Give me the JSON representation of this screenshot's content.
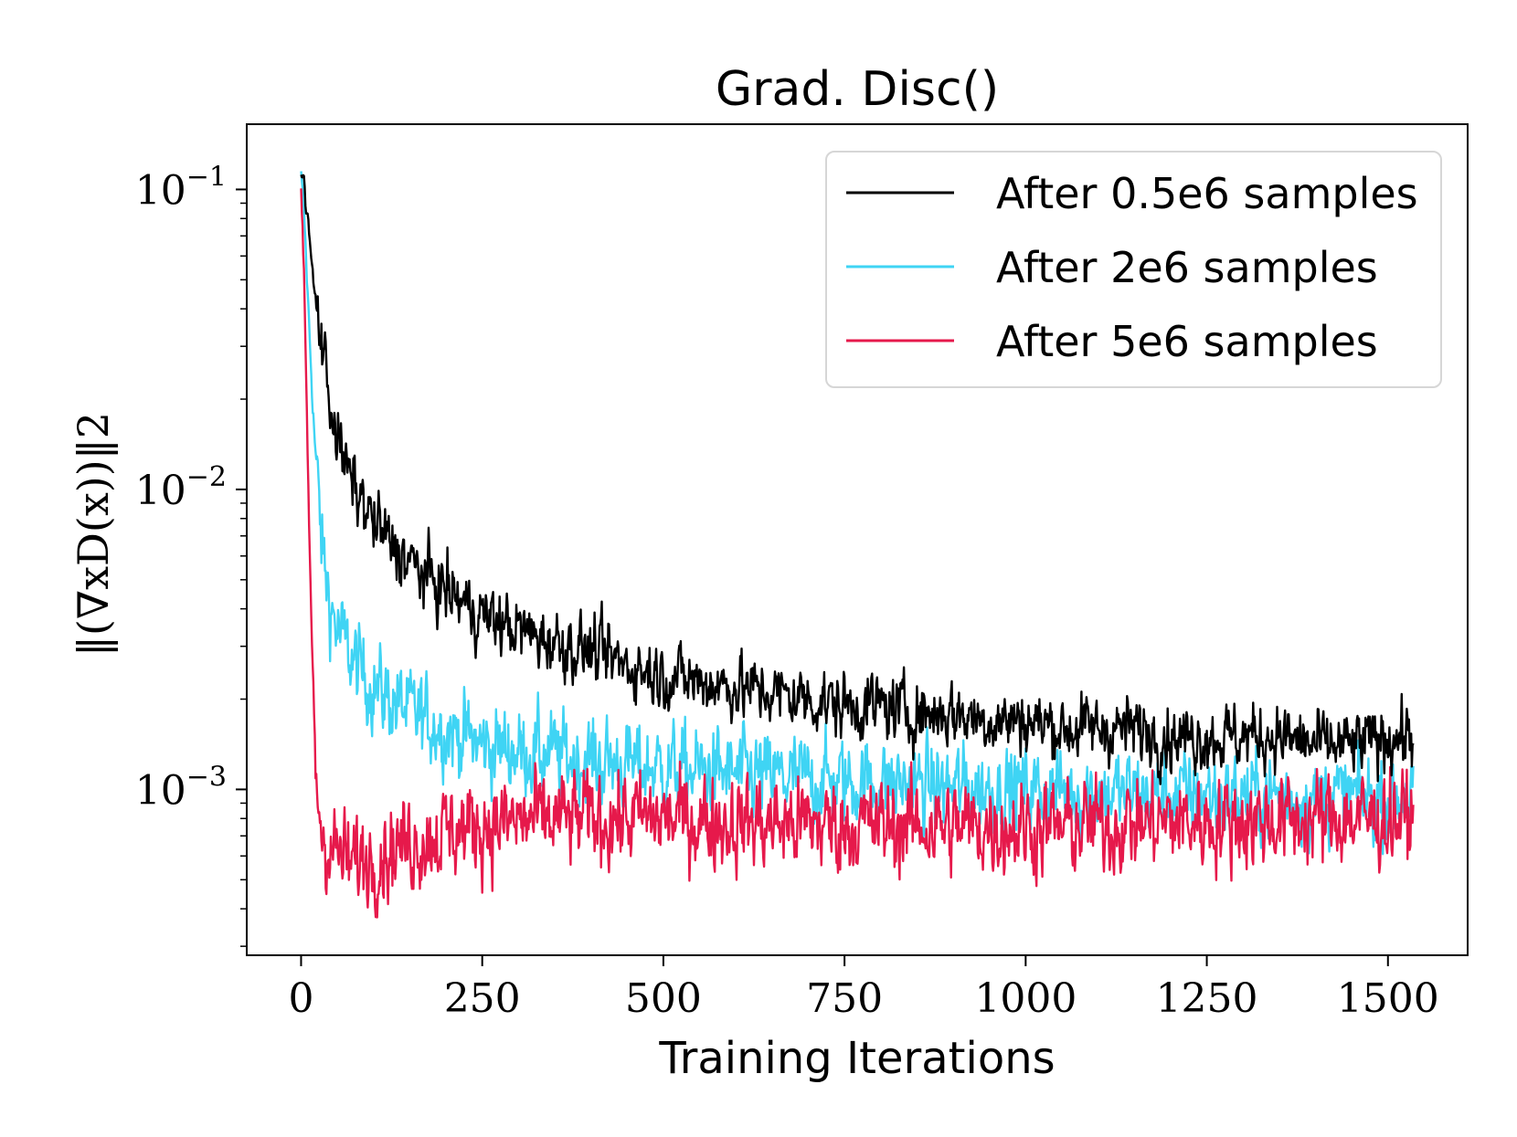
{
  "chart_data": {
    "type": "line",
    "title": "Grad. Disc()",
    "xlabel": "Training Iterations",
    "ylabel": "‖(∇xD(x))‖2",
    "yscale": "log",
    "xlim": [
      -75,
      1610
    ],
    "ylim": [
      0.00028,
      0.165
    ],
    "xticks": [
      0,
      250,
      500,
      750,
      1000,
      1250,
      1500
    ],
    "xtick_labels": [
      "0",
      "250",
      "500",
      "750",
      "1000",
      "1250",
      "1500"
    ],
    "yticks": [
      {
        "value": 0.1,
        "base": "10",
        "exp": "−1"
      },
      {
        "value": 0.01,
        "base": "10",
        "exp": "−2"
      },
      {
        "value": 0.001,
        "base": "10",
        "exp": "−3"
      }
    ],
    "legend_position": "top-right",
    "series": [
      {
        "name": "After 0.5e6 samples",
        "color": "#000000",
        "x": [
          0,
          5,
          10,
          15,
          20,
          30,
          40,
          50,
          60,
          80,
          100,
          125,
          150,
          175,
          200,
          250,
          300,
          350,
          400,
          450,
          500,
          550,
          600,
          650,
          700,
          750,
          800,
          850,
          900,
          950,
          1000,
          1050,
          1100,
          1150,
          1200,
          1250,
          1300,
          1350,
          1400,
          1450,
          1500,
          1535
        ],
        "values": [
          0.12,
          0.1,
          0.075,
          0.055,
          0.042,
          0.03,
          0.02,
          0.015,
          0.012,
          0.0095,
          0.0078,
          0.0065,
          0.0057,
          0.0051,
          0.0046,
          0.0038,
          0.0034,
          0.0031,
          0.0029,
          0.0026,
          0.0024,
          0.0023,
          0.0022,
          0.0021,
          0.002,
          0.0019,
          0.0019,
          0.0018,
          0.0018,
          0.0017,
          0.0017,
          0.0016,
          0.0016,
          0.0016,
          0.0015,
          0.0015,
          0.0015,
          0.0015,
          0.0014,
          0.0014,
          0.0015,
          0.0015
        ],
        "noise": 0.09
      },
      {
        "name": "After 2e6 samples",
        "color": "#3fd4f4",
        "x": [
          0,
          5,
          10,
          15,
          20,
          25,
          30,
          40,
          50,
          75,
          100,
          150,
          200,
          250,
          300,
          350,
          400,
          450,
          500,
          550,
          600,
          650,
          700,
          750,
          800,
          850,
          900,
          950,
          1000,
          1050,
          1100,
          1150,
          1200,
          1250,
          1300,
          1350,
          1400,
          1450,
          1500,
          1535
        ],
        "values": [
          0.11,
          0.075,
          0.04,
          0.022,
          0.013,
          0.0085,
          0.006,
          0.0042,
          0.0034,
          0.0026,
          0.0022,
          0.0018,
          0.0016,
          0.0014,
          0.00135,
          0.0013,
          0.00125,
          0.0012,
          0.00118,
          0.00115,
          0.00112,
          0.0011,
          0.00108,
          0.00106,
          0.00105,
          0.00103,
          0.00102,
          0.001,
          0.001,
          0.00099,
          0.00098,
          0.00097,
          0.00096,
          0.00096,
          0.00095,
          0.00095,
          0.00094,
          0.00094,
          0.00094,
          0.00095
        ],
        "noise": 0.12
      },
      {
        "name": "After 5e6 samples",
        "color": "#e6194b",
        "x": [
          0,
          5,
          10,
          15,
          20,
          25,
          30,
          40,
          50,
          60,
          70,
          80,
          100,
          125,
          150,
          200,
          250,
          300,
          350,
          400,
          450,
          500,
          550,
          600,
          650,
          700,
          750,
          800,
          850,
          900,
          950,
          1000,
          1050,
          1100,
          1150,
          1200,
          1250,
          1300,
          1350,
          1400,
          1450,
          1500,
          1535
        ],
        "values": [
          0.1,
          0.04,
          0.01,
          0.003,
          0.0012,
          0.00085,
          0.0007,
          0.00065,
          0.00062,
          0.00058,
          0.00056,
          0.00058,
          0.0006,
          0.00064,
          0.00067,
          0.00072,
          0.00076,
          0.00078,
          0.00079,
          0.0008,
          0.0008,
          0.0008,
          0.00079,
          0.00078,
          0.00077,
          0.00077,
          0.00076,
          0.00076,
          0.00076,
          0.00075,
          0.00075,
          0.00075,
          0.00075,
          0.00076,
          0.00077,
          0.00078,
          0.00078,
          0.00079,
          0.00079,
          0.0008,
          0.0008,
          0.0008,
          0.0008
        ],
        "noise": 0.13
      }
    ]
  }
}
